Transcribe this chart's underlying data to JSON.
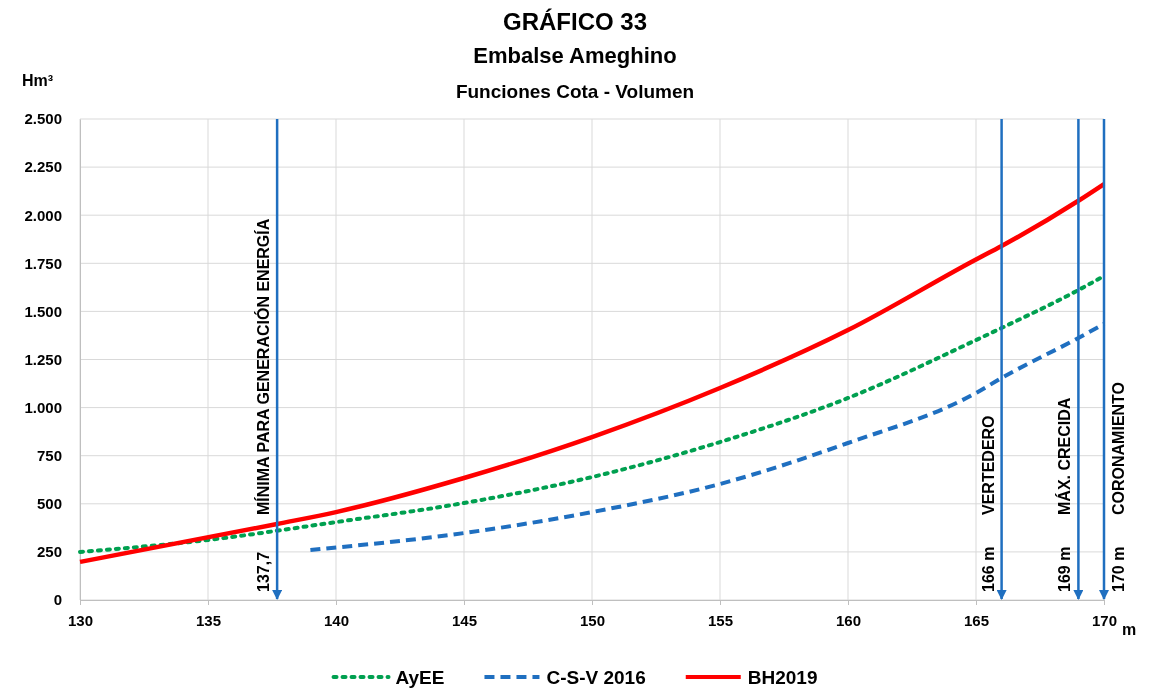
{
  "chart_data": {
    "type": "line",
    "title": "GRÁFICO 33",
    "subtitle": "Embalse Ameghino",
    "ylabel": "Hm³",
    "xlabel": "m",
    "annotations": [
      "Funciones Cota - Volumen",
      {
        "text": "137,7",
        "x": 137.7,
        "y": 0
      },
      {
        "text": "166 m",
        "x": 166,
        "y": 0
      },
      {
        "text": "169 m",
        "x": 169,
        "y": 0
      },
      {
        "text": "170 m",
        "x": 170,
        "y": 0
      }
    ],
    "xlim": [
      130,
      170
    ],
    "xticks": [
      130,
      135,
      140,
      145,
      150,
      155,
      160,
      165,
      170
    ],
    "ylim": [
      0,
      2500
    ],
    "yticks": [
      0,
      250,
      500,
      750,
      {
        "value": 1000,
        "label": "1.000"
      },
      {
        "value": 1250,
        "label": "1.250"
      },
      {
        "value": 1500,
        "label": "1.500"
      },
      {
        "value": 1750,
        "label": "1.750"
      },
      {
        "value": 2000,
        "label": "2.000"
      },
      {
        "value": 2250,
        "label": "2.250"
      },
      {
        "value": 2500,
        "label": "2.500"
      }
    ],
    "grid": true,
    "legend": "bottom",
    "series": [
      {
        "name": "AyEE",
        "color": "#00a050",
        "line_style": "dotted",
        "x": [
          130,
          135,
          140,
          145,
          150,
          155,
          160,
          165,
          166,
          169,
          170
        ],
        "values": [
          250,
          312,
          405,
          504,
          639,
          821,
          1050,
          1351,
          1414,
          1611,
          1684
        ]
      },
      {
        "name": "C-S-V 2016",
        "color": "#1f6fc0",
        "line_style": "dashed",
        "x": [
          139,
          145,
          150,
          155,
          160,
          165,
          166,
          169,
          170
        ],
        "values": [
          260,
          348,
          457,
          603,
          816,
          1076,
          1154,
          1362,
          1435
        ]
      },
      {
        "name": "BH2019",
        "color": "#ff0000",
        "line_style": "solid",
        "x": [
          130,
          137.7,
          140,
          145,
          150,
          155,
          160,
          165,
          166,
          169,
          170
        ],
        "values": [
          198,
          395,
          457,
          634,
          847,
          1102,
          1403,
          1770,
          1840,
          2075,
          2162
        ]
      }
    ],
    "ref_lines": [
      {
        "axis": "x",
        "value": 137.7,
        "label": "MÍNIMA PARA GENERACIÓN ENERGÍA",
        "color": "#1f6fc0"
      },
      {
        "axis": "x",
        "value": 166,
        "label": "VERTEDERO",
        "color": "#1f6fc0"
      },
      {
        "axis": "x",
        "value": 169,
        "label": "MÁX. CRECIDA",
        "color": "#1f6fc0"
      },
      {
        "axis": "x",
        "value": 170,
        "label": "CORONAMIENTO",
        "color": "#1f6fc0"
      }
    ]
  }
}
